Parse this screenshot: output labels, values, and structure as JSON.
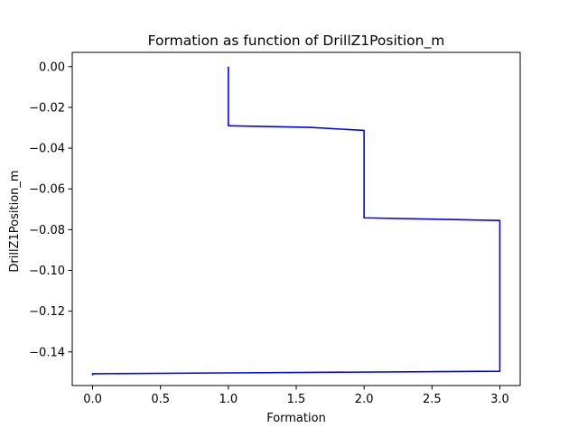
{
  "chart_data": {
    "type": "line",
    "title": "Formation as function of DrillZ1Position_m",
    "xlabel": "Formation",
    "ylabel": "DrillZ1Position_m",
    "xlim": [
      -0.15,
      3.15
    ],
    "ylim": [
      -0.1565,
      0.007
    ],
    "xticks": [
      0.0,
      0.5,
      1.0,
      1.5,
      2.0,
      2.5,
      3.0
    ],
    "xtick_labels": [
      "0.0",
      "0.5",
      "1.0",
      "1.5",
      "2.0",
      "2.5",
      "3.0"
    ],
    "yticks": [
      0.0,
      -0.02,
      -0.04,
      -0.06,
      -0.08,
      -0.1,
      -0.12,
      -0.14
    ],
    "ytick_labels": [
      "0.00",
      "−0.02",
      "−0.04",
      "−0.06",
      "−0.08",
      "−0.10",
      "−0.12",
      "−0.14"
    ],
    "grid": false,
    "series": [
      {
        "color": "#0000ff",
        "x": [
          1.0,
          1.0,
          1.0,
          1.6,
          2.0,
          2.0,
          2.0,
          2.0,
          3.0,
          3.0,
          3.0,
          3.0,
          1.0,
          0.0,
          0.0
        ],
        "y": [
          0.0,
          -0.015,
          -0.029,
          -0.0298,
          -0.0313,
          -0.06,
          -0.0742,
          -0.0742,
          -0.0755,
          -0.12,
          -0.1495,
          -0.1495,
          -0.1503,
          -0.1507,
          -0.1515
        ]
      }
    ]
  }
}
